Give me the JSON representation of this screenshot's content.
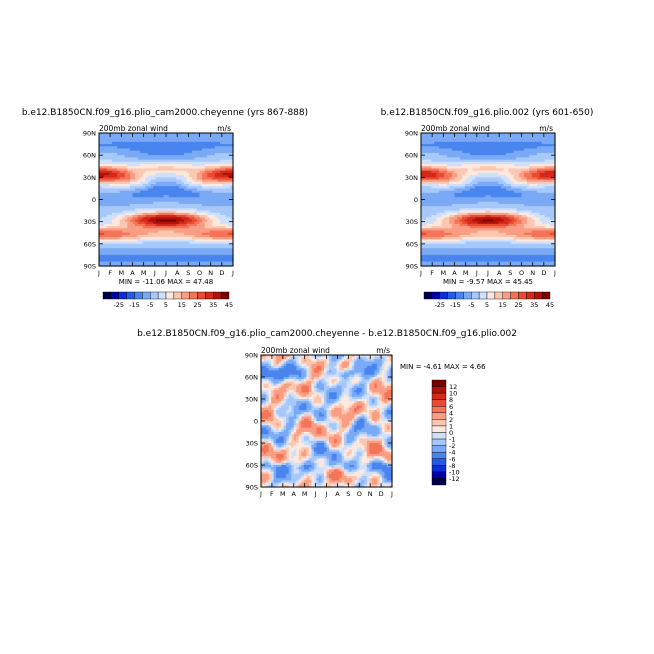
{
  "chart_data": [
    {
      "type": "heatmap",
      "title": "b.e12.B1850CN.f09_g16.plio_cam2000.cheyenne (yrs 867-888)",
      "subtitle": "200mb zonal wind",
      "units": "m/s",
      "x_tick_labels": [
        "J",
        "F",
        "M",
        "A",
        "M",
        "J",
        "J",
        "A",
        "S",
        "O",
        "N",
        "D",
        "J"
      ],
      "y_tick_labels": [
        "90N",
        "60N",
        "30N",
        "0",
        "30S",
        "60S",
        "90S"
      ],
      "min_text": "MIN = -11.06",
      "max_text": "MAX = 47.48",
      "colorbar_labels": [
        "-25",
        "-15",
        "-5",
        "5",
        "15",
        "25",
        "35",
        "45"
      ],
      "colorbar_levels": [
        -30,
        -25,
        -20,
        -15,
        -10,
        -5,
        0,
        5,
        10,
        15,
        20,
        25,
        30,
        35,
        40,
        45,
        50
      ],
      "jets": [
        {
          "lat": 30,
          "month": 0,
          "speed": 42
        },
        {
          "lat": 30,
          "month": 12,
          "speed": 42
        },
        {
          "lat": -28,
          "month": 7,
          "speed": 47
        },
        {
          "lat": -45,
          "month": 1,
          "speed": 30
        }
      ]
    },
    {
      "type": "heatmap",
      "title": "b.e12.B1850CN.f09_g16.plio.002 (yrs 601-650)",
      "subtitle": "200mb zonal wind",
      "units": "m/s",
      "x_tick_labels": [
        "J",
        "F",
        "M",
        "A",
        "M",
        "J",
        "J",
        "A",
        "S",
        "O",
        "N",
        "D",
        "J"
      ],
      "y_tick_labels": [
        "90N",
        "60N",
        "30N",
        "0",
        "30S",
        "60S",
        "90S"
      ],
      "min_text": "MIN = -9.57",
      "max_text": "MAX = 45.45",
      "colorbar_labels": [
        "-25",
        "-15",
        "-5",
        "5",
        "15",
        "25",
        "35",
        "45"
      ],
      "colorbar_levels": [
        -30,
        -25,
        -20,
        -15,
        -10,
        -5,
        0,
        5,
        10,
        15,
        20,
        25,
        30,
        35,
        40,
        45,
        50
      ],
      "jets": [
        {
          "lat": 30,
          "month": 0,
          "speed": 40
        },
        {
          "lat": 30,
          "month": 12,
          "speed": 40
        },
        {
          "lat": -28,
          "month": 7,
          "speed": 45
        },
        {
          "lat": -45,
          "month": 1,
          "speed": 30
        }
      ]
    },
    {
      "type": "heatmap",
      "title": "b.e12.B1850CN.f09_g16.plio_cam2000.cheyenne - b.e12.B1850CN.f09_g16.plio.002",
      "subtitle": "200mb zonal wind",
      "units": "m/s",
      "x_tick_labels": [
        "J",
        "F",
        "M",
        "A",
        "M",
        "J",
        "J",
        "A",
        "S",
        "O",
        "N",
        "D",
        "J"
      ],
      "y_tick_labels": [
        "90N",
        "60N",
        "30N",
        "0",
        "30S",
        "60S",
        "90S"
      ],
      "min_text": "MIN = -4.61",
      "max_text": "MAX = 4.66",
      "colorbar_labels": [
        "12",
        "10",
        "8",
        "6",
        "4",
        "2",
        "1",
        "0",
        "-1",
        "-2",
        "-4",
        "-6",
        "-8",
        "-10",
        "-12"
      ],
      "colorbar_levels": [
        -14,
        -12,
        -10,
        -8,
        -6,
        -4,
        -2,
        -1,
        0,
        1,
        2,
        4,
        6,
        8,
        10,
        12,
        14
      ]
    }
  ],
  "colors": {
    "blue_to_red": [
      "#00004a",
      "#0000a6",
      "#0a2fd6",
      "#2559e6",
      "#4a85ef",
      "#7aaaf5",
      "#a6c8fa",
      "#cfe0fd",
      "#fde8de",
      "#fcc7b1",
      "#f99d84",
      "#f47458",
      "#e84a32",
      "#d12a1a",
      "#b01208",
      "#7a0000"
    ]
  }
}
